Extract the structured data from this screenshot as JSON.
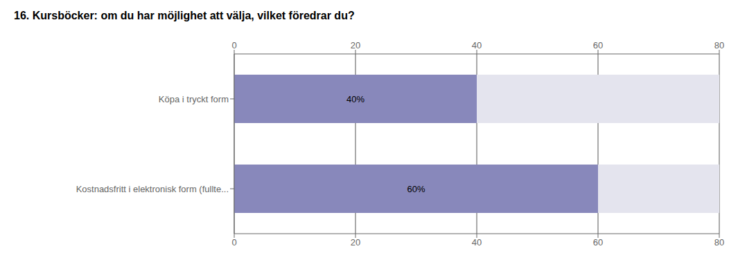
{
  "chart_data": {
    "type": "bar",
    "title": "16. Kursböcker: om du har möjlighet att välja, vilket föredrar du?",
    "orientation": "horizontal",
    "categories": [
      "Köpa i tryckt form",
      "Kostnadsfritt i elektronisk form (fullte..."
    ],
    "values": [
      40,
      60
    ],
    "value_labels": [
      "40%",
      "60%"
    ],
    "data_labels": true,
    "color": "#8888bb",
    "xlim": [
      0,
      80
    ],
    "xticks": [
      0,
      20,
      40,
      60,
      80
    ],
    "grid": true
  }
}
